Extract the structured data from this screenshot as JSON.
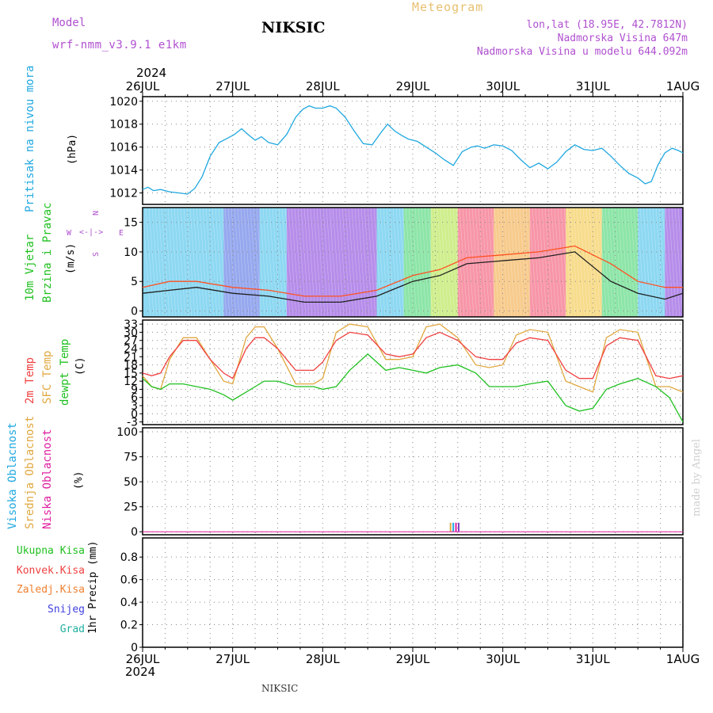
{
  "header": {
    "model_label": "Model",
    "model_name": "wrf-nmm_v3.9.1  e1km",
    "station": "NIKSIC",
    "product": "Meteogram",
    "coords": "lon,lat (18.95E, 42.7812N)",
    "altitude": "Nadmorska Visina 647m",
    "model_altitude": "Nadmorska Visina u modelu 644.092m",
    "footer_station": "NIKSIC",
    "credit": "made by Angel",
    "colors": {
      "model": "#b050d0",
      "product": "#e8c070",
      "coords": "#b050d0"
    }
  },
  "time_axis": {
    "year": "2024",
    "ticks": [
      "26JUL",
      "27JUL",
      "28JUL",
      "29JUL",
      "30JUL",
      "31JUL",
      "1AUG"
    ]
  },
  "chart_data": [
    {
      "type": "line",
      "panel": "pressure",
      "labels": [
        {
          "text": "Pritisak na nivou mora",
          "color": "#20a8e0"
        }
      ],
      "unit": "(hPa)",
      "ylim": [
        1011,
        1020.4
      ],
      "yticks": [
        1012,
        1014,
        1016,
        1018,
        1020
      ],
      "series": [
        {
          "color": "#20a8e0",
          "x": [
            0,
            0.06,
            0.12,
            0.2,
            0.3,
            0.4,
            0.5,
            0.58,
            0.66,
            0.75,
            0.85,
            0.95,
            1.02,
            1.1,
            1.17,
            1.25,
            1.32,
            1.4,
            1.5,
            1.6,
            1.7,
            1.78,
            1.85,
            1.92,
            2.0,
            2.08,
            2.15,
            2.25,
            2.35,
            2.45,
            2.55,
            2.65,
            2.72,
            2.8,
            2.88,
            2.95,
            3.05,
            3.15,
            3.25,
            3.35,
            3.45,
            3.55,
            3.65,
            3.72,
            3.8,
            3.9,
            4.0,
            4.1,
            4.2,
            4.3,
            4.4,
            4.5,
            4.6,
            4.7,
            4.8,
            4.9,
            5.0,
            5.1,
            5.2,
            5.3,
            5.4,
            5.5,
            5.58,
            5.65,
            5.72,
            5.8,
            5.88,
            5.95,
            6.0
          ],
          "y": [
            1012.3,
            1012.5,
            1012.2,
            1012.3,
            1012.1,
            1012.0,
            1011.9,
            1012.4,
            1013.4,
            1015.2,
            1016.4,
            1016.8,
            1017.1,
            1017.6,
            1017.1,
            1016.6,
            1016.9,
            1016.4,
            1016.2,
            1017.1,
            1018.6,
            1019.3,
            1019.6,
            1019.4,
            1019.4,
            1019.6,
            1019.4,
            1018.6,
            1017.4,
            1016.3,
            1016.2,
            1017.3,
            1018.0,
            1017.4,
            1017.0,
            1016.7,
            1016.5,
            1016.0,
            1015.5,
            1014.9,
            1014.4,
            1015.6,
            1016.0,
            1016.1,
            1015.9,
            1016.2,
            1016.1,
            1015.7,
            1014.9,
            1014.2,
            1014.6,
            1014.1,
            1014.7,
            1015.6,
            1016.2,
            1015.8,
            1015.7,
            1015.9,
            1015.2,
            1014.4,
            1013.7,
            1013.3,
            1012.8,
            1013.0,
            1014.4,
            1015.5,
            1015.9,
            1015.7,
            1015.5
          ]
        }
      ]
    },
    {
      "type": "line",
      "panel": "wind",
      "labels": [
        {
          "text": "10m Vjetar",
          "color": "#20c020"
        },
        {
          "text": "Brzina i Pravac",
          "color": "#20c020"
        }
      ],
      "unit": "(m/s)",
      "compass": {
        "n": "N",
        "s": "S",
        "w": "W",
        "e": "E",
        "color": "#b050d0"
      },
      "ylim": [
        -1,
        17.5
      ],
      "yticks": [
        0,
        5,
        10,
        15
      ],
      "series": [
        {
          "color": "#202020",
          "x": [
            0,
            0.3,
            0.6,
            1.0,
            1.4,
            1.8,
            2.2,
            2.6,
            3.0,
            3.3,
            3.6,
            4.0,
            4.4,
            4.8,
            5.2,
            5.5,
            5.8,
            6.0
          ],
          "y": [
            3,
            3.5,
            4,
            3,
            2.5,
            1.5,
            1.5,
            2.5,
            5,
            6,
            8,
            8.5,
            9,
            10,
            5,
            3,
            2,
            3
          ]
        },
        {
          "color": "#ff5020",
          "x": [
            0,
            0.3,
            0.6,
            1.0,
            1.4,
            1.8,
            2.2,
            2.6,
            3.0,
            3.3,
            3.6,
            4.0,
            4.4,
            4.8,
            5.2,
            5.5,
            5.8,
            6.0
          ],
          "y": [
            4,
            5,
            5,
            4,
            3.5,
            2.5,
            2.5,
            3.5,
            6,
            7,
            9,
            9.5,
            10,
            11,
            8,
            5,
            4,
            4
          ]
        }
      ]
    },
    {
      "type": "line",
      "panel": "temperature",
      "labels": [
        {
          "text": "2m Temp",
          "color": "#f04040"
        },
        {
          "text": "SFC Temp",
          "color": "#e0a840"
        },
        {
          "text": "dewpt Temp",
          "color": "#20c020"
        }
      ],
      "unit": "(C)",
      "ylim": [
        -4,
        34.5
      ],
      "yticks": [
        -3,
        0,
        3,
        6,
        9,
        12,
        15,
        18,
        21,
        24,
        27,
        30,
        33
      ],
      "series": [
        {
          "color": "#e0a840",
          "x": [
            0,
            0.1,
            0.2,
            0.3,
            0.45,
            0.6,
            0.75,
            0.9,
            1.0,
            1.15,
            1.25,
            1.35,
            1.5,
            1.7,
            1.9,
            2.0,
            2.15,
            2.3,
            2.5,
            2.7,
            2.85,
            3.0,
            3.15,
            3.3,
            3.5,
            3.7,
            3.85,
            4.0,
            4.15,
            4.3,
            4.5,
            4.7,
            4.85,
            5.0,
            5.15,
            5.3,
            5.5,
            5.7,
            5.85,
            6.0
          ],
          "y": [
            14,
            10,
            9,
            20,
            28,
            28,
            20,
            12,
            11,
            28,
            32,
            32,
            24,
            11,
            11,
            13,
            30,
            33,
            32,
            20,
            20,
            21,
            32,
            33,
            28,
            18,
            17,
            18,
            29,
            31,
            30,
            12,
            10,
            8,
            28,
            31,
            30,
            10,
            10,
            8
          ]
        },
        {
          "color": "#f04040",
          "x": [
            0,
            0.1,
            0.2,
            0.3,
            0.45,
            0.6,
            0.75,
            0.9,
            1.0,
            1.15,
            1.25,
            1.35,
            1.5,
            1.7,
            1.9,
            2.0,
            2.15,
            2.3,
            2.5,
            2.7,
            2.85,
            3.0,
            3.15,
            3.3,
            3.5,
            3.7,
            3.85,
            4.0,
            4.15,
            4.3,
            4.5,
            4.7,
            4.85,
            5.0,
            5.15,
            5.3,
            5.5,
            5.7,
            5.85,
            6.0
          ],
          "y": [
            15,
            14,
            15,
            21,
            27,
            27,
            20,
            15,
            13,
            24,
            28,
            28,
            24,
            16,
            16,
            19,
            27,
            30,
            29,
            22,
            21,
            22,
            28,
            30,
            27,
            21,
            20,
            20,
            26,
            28,
            27,
            16,
            13,
            13,
            25,
            28,
            27,
            14,
            13,
            14
          ]
        },
        {
          "color": "#20c020",
          "x": [
            0,
            0.1,
            0.2,
            0.3,
            0.45,
            0.6,
            0.75,
            0.9,
            1.0,
            1.15,
            1.25,
            1.35,
            1.5,
            1.7,
            1.9,
            2.0,
            2.15,
            2.3,
            2.5,
            2.7,
            2.85,
            3.0,
            3.15,
            3.3,
            3.5,
            3.7,
            3.85,
            4.0,
            4.15,
            4.3,
            4.5,
            4.7,
            4.85,
            5.0,
            5.15,
            5.3,
            5.5,
            5.7,
            5.85,
            6.0
          ],
          "y": [
            13,
            10,
            9,
            11,
            11,
            10,
            9,
            7,
            5,
            8,
            10,
            12,
            12,
            10,
            10,
            9,
            10,
            16,
            22,
            16,
            17,
            16,
            15,
            17,
            18,
            15,
            10,
            10,
            10,
            11,
            12,
            3,
            1,
            2,
            9,
            11,
            13,
            10,
            6,
            -3
          ]
        }
      ]
    },
    {
      "type": "bar",
      "panel": "cloud",
      "labels": [
        {
          "text": "Visoka Oblacnost",
          "color": "#20a8e0"
        },
        {
          "text": "Srednja Oblacnost",
          "color": "#e0a840"
        },
        {
          "text": "Niska Oblacnost",
          "color": "#e020a0"
        }
      ],
      "unit": "(%)",
      "ylim": [
        -3,
        104
      ],
      "yticks": [
        0,
        25,
        50,
        75,
        100
      ],
      "bars": [
        {
          "x": 3.42,
          "value": 9,
          "color": "#e0a840"
        },
        {
          "x": 3.45,
          "value": 9,
          "color": "#20a8e0"
        },
        {
          "x": 3.48,
          "value": 9,
          "color": "#e020a0"
        },
        {
          "x": 3.51,
          "value": 9,
          "color": "#8040c0"
        }
      ]
    },
    {
      "type": "bar",
      "panel": "precip",
      "labels": [
        {
          "text": "Ukupna Kisa",
          "color": "#20c020"
        },
        {
          "text": "Konvek.Kisa",
          "color": "#f04040"
        },
        {
          "text": "Zaledj.Kisa",
          "color": "#f08030"
        },
        {
          "text": "Snijeg",
          "color": "#4040e0"
        },
        {
          "text": "Grad",
          "color": "#20b0a0"
        }
      ],
      "unit": "1hr Precip (mm)",
      "ylim": [
        0,
        0.97
      ],
      "yticks": [
        0,
        0.2,
        0.4,
        0.6,
        0.8
      ],
      "bars": []
    }
  ]
}
